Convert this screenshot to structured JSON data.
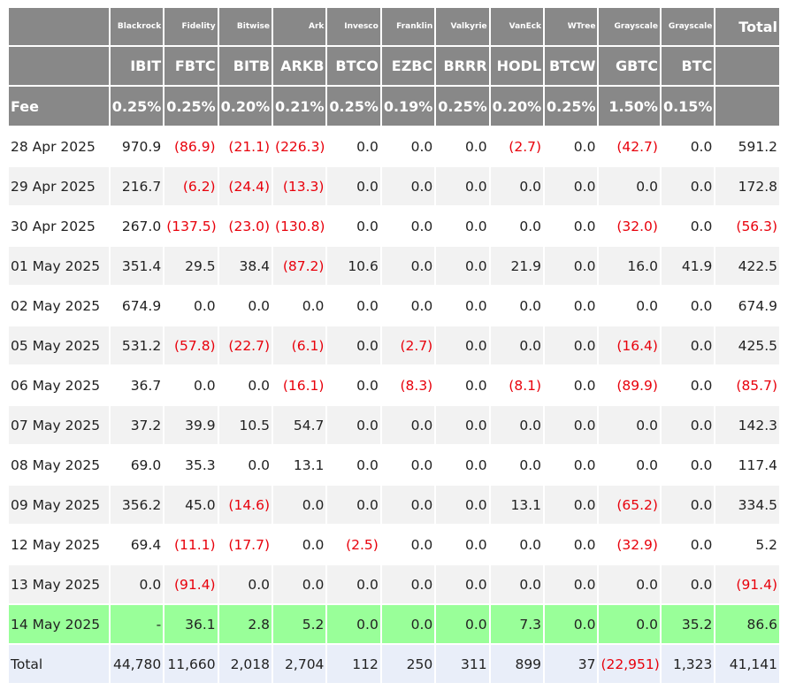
{
  "colors": {
    "header_bg": "#888888",
    "header_text": "#ffffff",
    "negative": "#e8000b",
    "latest_row_bg": "#99ff99",
    "total_row_bg": "#e9eef9",
    "alt_row_bg": "#f2f2f2"
  },
  "header": {
    "issuers": [
      "Blackrock",
      "Fidelity",
      "Bitwise",
      "Ark",
      "Invesco",
      "Franklin",
      "Valkyrie",
      "VanEck",
      "WTree",
      "Grayscale",
      "Grayscale"
    ],
    "total_label": "Total",
    "tickers": [
      "IBIT",
      "FBTC",
      "BITB",
      "ARKB",
      "BTCO",
      "EZBC",
      "BRRR",
      "HODL",
      "BTCW",
      "GBTC",
      "BTC"
    ],
    "fee_label": "Fee",
    "fees": [
      "0.25%",
      "0.25%",
      "0.20%",
      "0.21%",
      "0.25%",
      "0.19%",
      "0.25%",
      "0.20%",
      "0.25%",
      "1.50%",
      "0.15%"
    ]
  },
  "rows": [
    {
      "date": "28 Apr 2025",
      "values": [
        "970.9",
        "(86.9)",
        "(21.1)",
        "(226.3)",
        "0.0",
        "0.0",
        "0.0",
        "(2.7)",
        "0.0",
        "(42.7)",
        "0.0"
      ],
      "total": "591.2"
    },
    {
      "date": "29 Apr 2025",
      "values": [
        "216.7",
        "(6.2)",
        "(24.4)",
        "(13.3)",
        "0.0",
        "0.0",
        "0.0",
        "0.0",
        "0.0",
        "0.0",
        "0.0"
      ],
      "total": "172.8"
    },
    {
      "date": "30 Apr 2025",
      "values": [
        "267.0",
        "(137.5)",
        "(23.0)",
        "(130.8)",
        "0.0",
        "0.0",
        "0.0",
        "0.0",
        "0.0",
        "(32.0)",
        "0.0"
      ],
      "total": "(56.3)"
    },
    {
      "date": "01 May 2025",
      "values": [
        "351.4",
        "29.5",
        "38.4",
        "(87.2)",
        "10.6",
        "0.0",
        "0.0",
        "21.9",
        "0.0",
        "16.0",
        "41.9"
      ],
      "total": "422.5"
    },
    {
      "date": "02 May 2025",
      "values": [
        "674.9",
        "0.0",
        "0.0",
        "0.0",
        "0.0",
        "0.0",
        "0.0",
        "0.0",
        "0.0",
        "0.0",
        "0.0"
      ],
      "total": "674.9"
    },
    {
      "date": "05 May 2025",
      "values": [
        "531.2",
        "(57.8)",
        "(22.7)",
        "(6.1)",
        "0.0",
        "(2.7)",
        "0.0",
        "0.0",
        "0.0",
        "(16.4)",
        "0.0"
      ],
      "total": "425.5"
    },
    {
      "date": "06 May 2025",
      "values": [
        "36.7",
        "0.0",
        "0.0",
        "(16.1)",
        "0.0",
        "(8.3)",
        "0.0",
        "(8.1)",
        "0.0",
        "(89.9)",
        "0.0"
      ],
      "total": "(85.7)"
    },
    {
      "date": "07 May 2025",
      "values": [
        "37.2",
        "39.9",
        "10.5",
        "54.7",
        "0.0",
        "0.0",
        "0.0",
        "0.0",
        "0.0",
        "0.0",
        "0.0"
      ],
      "total": "142.3"
    },
    {
      "date": "08 May 2025",
      "values": [
        "69.0",
        "35.3",
        "0.0",
        "13.1",
        "0.0",
        "0.0",
        "0.0",
        "0.0",
        "0.0",
        "0.0",
        "0.0"
      ],
      "total": "117.4"
    },
    {
      "date": "09 May 2025",
      "values": [
        "356.2",
        "45.0",
        "(14.6)",
        "0.0",
        "0.0",
        "0.0",
        "0.0",
        "13.1",
        "0.0",
        "(65.2)",
        "0.0"
      ],
      "total": "334.5"
    },
    {
      "date": "12 May 2025",
      "values": [
        "69.4",
        "(11.1)",
        "(17.7)",
        "0.0",
        "(2.5)",
        "0.0",
        "0.0",
        "0.0",
        "0.0",
        "(32.9)",
        "0.0"
      ],
      "total": "5.2"
    },
    {
      "date": "13 May 2025",
      "values": [
        "0.0",
        "(91.4)",
        "0.0",
        "0.0",
        "0.0",
        "0.0",
        "0.0",
        "0.0",
        "0.0",
        "0.0",
        "0.0"
      ],
      "total": "(91.4)"
    },
    {
      "date": "14 May 2025",
      "values": [
        "-",
        "36.1",
        "2.8",
        "5.2",
        "0.0",
        "0.0",
        "0.0",
        "7.3",
        "0.0",
        "0.0",
        "35.2"
      ],
      "total": "86.6"
    }
  ],
  "totals": {
    "label": "Total",
    "values": [
      "44,780",
      "11,660",
      "2,018",
      "2,704",
      "112",
      "250",
      "311",
      "899",
      "37",
      "(22,951)",
      "1,323"
    ],
    "total": "41,141"
  }
}
